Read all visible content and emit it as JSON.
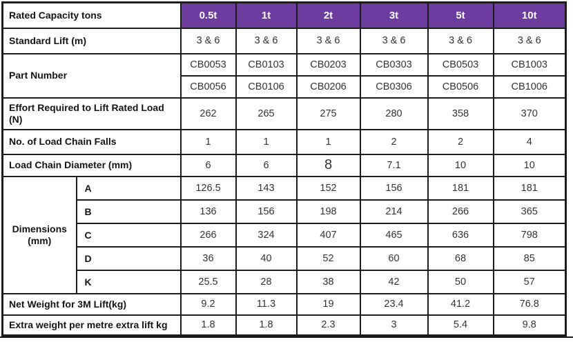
{
  "page": {
    "accent_color": "#6c3c9f",
    "border_color": "#1c1c1c"
  },
  "table": {
    "header": {
      "label": "Rated Capacity tons",
      "columns": [
        "0.5t",
        "1t",
        "2t",
        "3t",
        "5t",
        "10t"
      ]
    },
    "rows": [
      {
        "id": "standard-lift",
        "label": "Standard Lift (m)",
        "values": [
          "3 & 6",
          "3 & 6",
          "3 & 6",
          "3 & 6",
          "3 & 6",
          "3 & 6"
        ]
      },
      {
        "id": "part-number",
        "label": "Part Number",
        "subrows": [
          {
            "values": [
              "CB0053",
              "CB0103",
              "CB0203",
              "CB0303",
              "CB0503",
              "CB1003"
            ]
          },
          {
            "values": [
              "CB0056",
              "CB0106",
              "CB0206",
              "CB0306",
              "CB0506",
              "CB1006"
            ]
          }
        ]
      },
      {
        "id": "effort",
        "label": "Effort Required to Lift Rated Load (N)",
        "values": [
          "262",
          "265",
          "275",
          "280",
          "358",
          "370"
        ]
      },
      {
        "id": "chain-falls",
        "label": "No. of Load Chain Falls",
        "values": [
          "1",
          "1",
          "1",
          "2",
          "2",
          "4"
        ]
      },
      {
        "id": "chain-diameter",
        "label": "Load Chain Diameter (mm)",
        "values": [
          "6",
          "6",
          {
            "text": "8",
            "large": true
          },
          "7.1",
          "10",
          "10"
        ]
      },
      {
        "id": "dimensions",
        "label": "Dimensions (mm)",
        "subrows": [
          {
            "sub": "A",
            "values": [
              "126.5",
              "143",
              "152",
              "156",
              "181",
              "181"
            ]
          },
          {
            "sub": "B",
            "values": [
              "136",
              "156",
              "198",
              "214",
              "266",
              "365"
            ]
          },
          {
            "sub": "C",
            "values": [
              "266",
              "324",
              "407",
              "465",
              "636",
              "798"
            ]
          },
          {
            "sub": "D",
            "values": [
              "36",
              "40",
              "52",
              "60",
              "68",
              "85"
            ]
          },
          {
            "sub": "K",
            "values": [
              "25.5",
              "28",
              "38",
              "42",
              "50",
              "57"
            ]
          }
        ]
      },
      {
        "id": "net-weight",
        "label": "Net Weight for 3M Lift(kg)",
        "values": [
          "9.2",
          "11.3",
          "19",
          "23.4",
          "41.2",
          "76.8"
        ]
      },
      {
        "id": "extra-weight",
        "label": "Extra weight per metre extra lift kg",
        "values": [
          "1.8",
          "1.8",
          "2.3",
          "3",
          "5.4",
          "9.8"
        ]
      }
    ]
  }
}
